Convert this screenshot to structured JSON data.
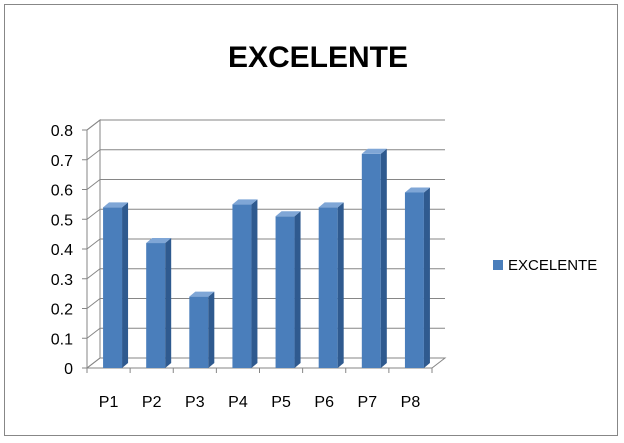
{
  "chart_data": {
    "type": "bar",
    "title": "EXCELENTE",
    "categories": [
      "P1",
      "P2",
      "P3",
      "P4",
      "P5",
      "P6",
      "P7",
      "P8"
    ],
    "series": [
      {
        "name": "EXCELENTE",
        "values": [
          0.54,
          0.42,
          0.24,
          0.55,
          0.51,
          0.54,
          0.72,
          0.59
        ]
      }
    ],
    "ylim": [
      0,
      0.8
    ],
    "yticks": [
      "0",
      "0.1",
      "0.2",
      "0.3",
      "0.4",
      "0.5",
      "0.6",
      "0.7",
      "0.8"
    ],
    "grid": true,
    "legend": "right",
    "colors": {
      "bar_front": "#4a7ebb",
      "bar_side": "#2f5a8f",
      "bar_top": "#7fa6d6",
      "grid": "#868686"
    }
  }
}
